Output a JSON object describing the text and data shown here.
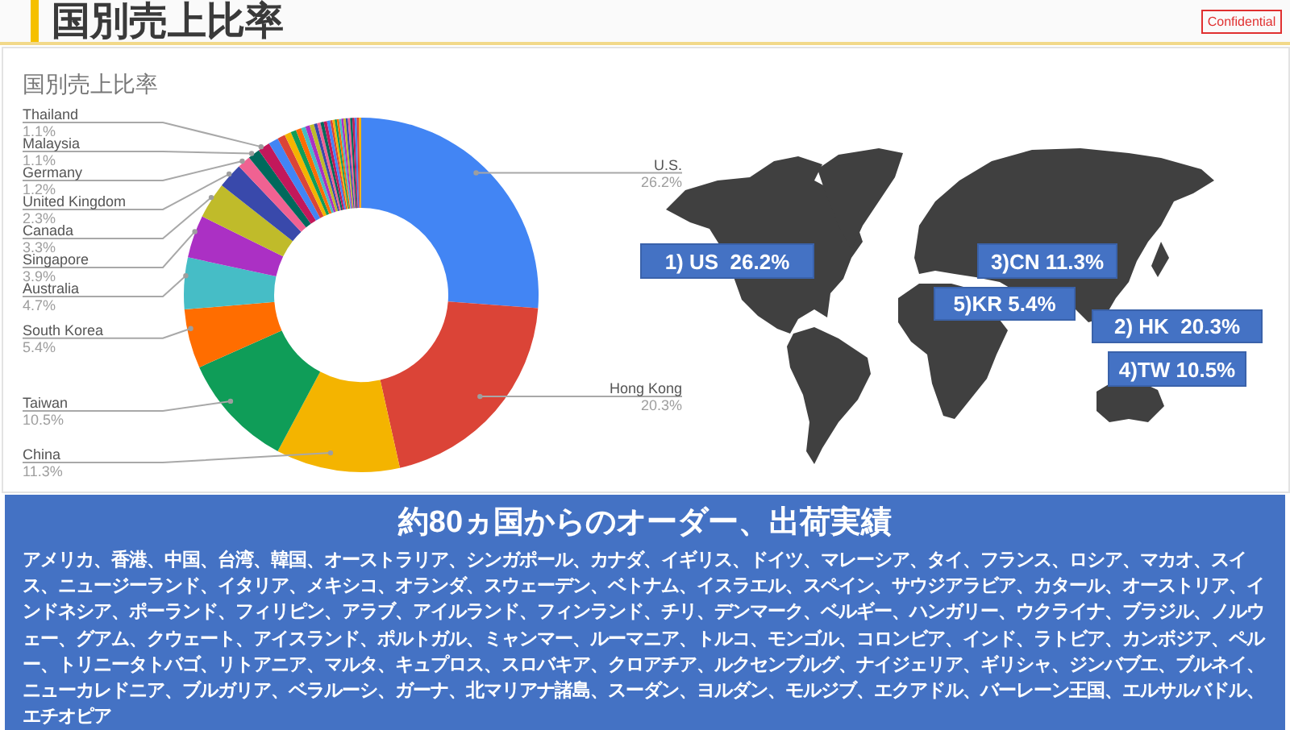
{
  "chart_data": {
    "type": "donut",
    "title": "国別売上比率",
    "subtitle": "国別売上比率",
    "categories": [
      "U.S.",
      "Hong Kong",
      "China",
      "Taiwan",
      "South Korea",
      "Australia",
      "Singapore",
      "Canada",
      "United Kingdom",
      "Germany",
      "Malaysia",
      "Thailand",
      null,
      null,
      null,
      null,
      null,
      null,
      null,
      null,
      null,
      null,
      null,
      null,
      null,
      null,
      null,
      null,
      null,
      null,
      null,
      null,
      null,
      null,
      null,
      null,
      null,
      null,
      null
    ],
    "values": [
      26.2,
      20.3,
      11.3,
      10.5,
      5.4,
      4.7,
      3.9,
      3.3,
      2.3,
      1.2,
      1.1,
      1.1,
      0.9,
      0.7,
      0.6,
      0.5,
      0.5,
      0.4,
      0.4,
      0.4,
      0.3,
      0.3,
      0.3,
      0.3,
      0.3,
      0.2,
      0.2,
      0.2,
      0.2,
      0.2,
      0.2,
      0.2,
      0.2,
      0.2,
      0.2,
      0.2,
      0.2,
      0.2,
      0.2
    ],
    "colors": [
      "#4285f4",
      "#db4437",
      "#f4b400",
      "#0f9d58",
      "#ff6d00",
      "#46bdc6",
      "#ab30c4",
      "#c0bb2a",
      "#3949ab",
      "#f06292",
      "#00695c",
      "#c2185b",
      "#4285f4",
      "#db4437",
      "#f4b400",
      "#0f9d58",
      "#ff6d00",
      "#46bdc6",
      "#ab30c4",
      "#c0bb2a",
      "#3949ab",
      "#f06292",
      "#00695c",
      "#c2185b",
      "#4285f4",
      "#db4437",
      "#f4b400",
      "#0f9d58",
      "#ff6d00",
      "#46bdc6",
      "#ab30c4",
      "#c0bb2a",
      "#3949ab",
      "#f06292",
      "#00695c",
      "#c2185b",
      "#4285f4",
      "#db4437",
      "#f4b400"
    ],
    "value_labels": [
      "26.2%",
      "20.3%",
      "11.3%",
      "10.5%",
      "5.4%",
      "4.7%",
      "3.9%",
      "3.3%",
      "2.3%",
      "1.2%",
      "1.1%",
      "1.1%",
      null,
      null,
      null,
      null,
      null,
      null,
      null,
      null,
      null,
      null,
      null,
      null,
      null,
      null,
      null,
      null,
      null,
      null,
      null,
      null,
      null,
      null,
      null,
      null,
      null,
      null,
      null
    ],
    "annotations": [
      "Confidential",
      "1) US  26.2%",
      "3)CN 11.3%",
      "5)KR 5.4%",
      "2) HK  20.3%",
      "4)TW 10.5%",
      "約80ヵ国からのオーダー、出荷実績",
      "アメリカ、香港、中国、台湾、韓国、オーストラリア、シンガポール、カナダ、イギリス、ドイツ、マレーシア、タイ、フランス、ロシア、マカオ、スイス、ニュージーランド、イタリア、メキシコ、オランダ、スウェーデン、ベトナム、イスラエル、スペイン、サウジアラビア、カタール、オーストリア、インドネシア、ポーランド、フィリピン、アラブ、アイルランド、フィンランド、チリ、デンマーク、ベルギー、ハンガリー、ウクライナ、ブラジル、ノルウェー、グアム、クウェート、アイスランド、ポルトガル、ミャンマー、ルーマニア、トルコ、モンゴル、コロンビア、インド、ラトビア、カンボジア、ペルー、トリニータトバゴ、リトアニア、マルタ、キュプロス、スロバキア、クロアチア、ルクセンブルグ、ナイジェリア、ギリシャ、ジンバブエ、ブルネイ、ニューカレドニア、ブルガリア、ベラルーシ、ガーナ、北マリアナ諸島、スーダン、ヨルダン、モルジブ、エクアドル、バーレーン王国、エルサルバドル、エチオピア"
    ]
  }
}
